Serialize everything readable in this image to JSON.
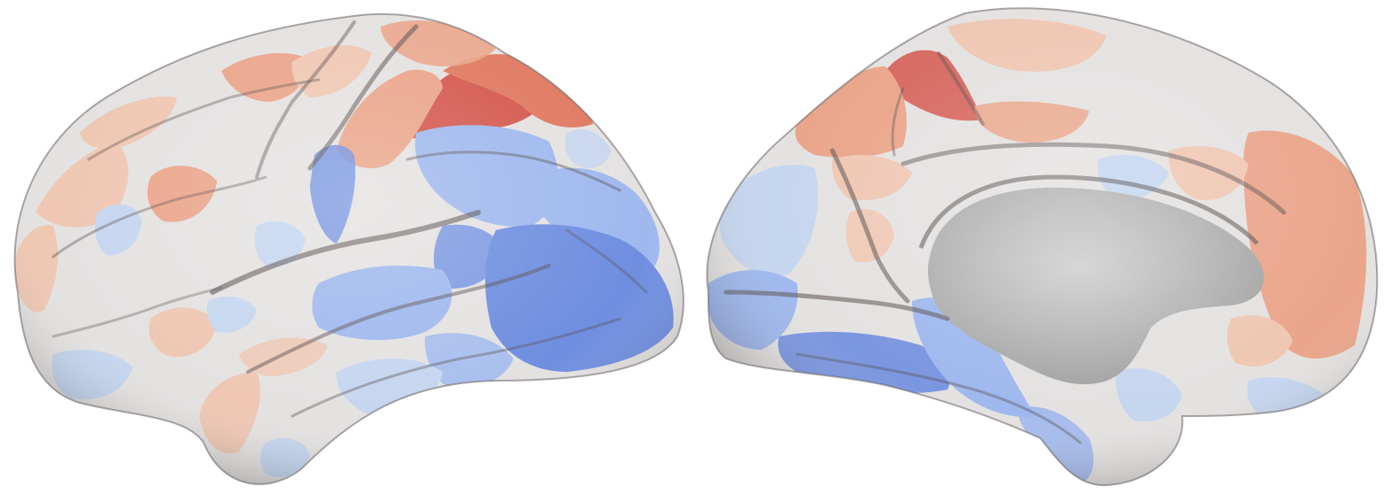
{
  "figure": {
    "background": "#ffffff",
    "colormap": {
      "name": "coolwarm",
      "strong_red": "#d24a3f",
      "red": "#e07a62",
      "salmon": "#eaa58a",
      "light_salmon": "#efc7b3",
      "neutral": "#e4e2e1",
      "light_blue": "#c5d6ef",
      "blue": "#9fb8ee",
      "strong_blue": "#6f8ee0",
      "medial_wall": "#bdbdbd"
    },
    "views": [
      {
        "name": "left-hemisphere-lateral"
      },
      {
        "name": "left-hemisphere-medial"
      }
    ]
  }
}
